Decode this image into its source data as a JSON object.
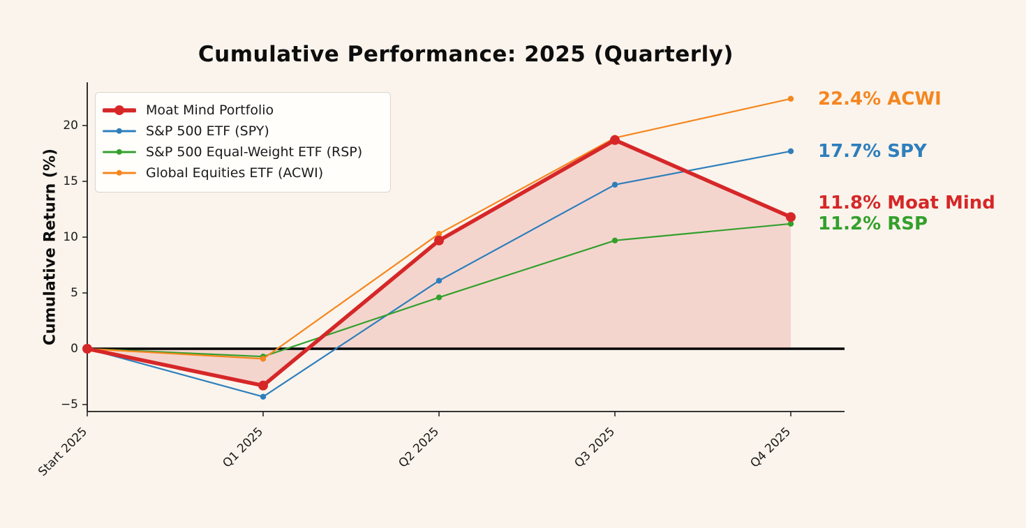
{
  "page": {
    "background_color": "#faf4ec"
  },
  "chart_data": {
    "type": "line",
    "title": "Cumulative Performance: 2025 (Quarterly)",
    "xlabel": "",
    "ylabel": "Cumulative Return (%)",
    "categories": [
      "Start 2025",
      "Q1 2025",
      "Q2 2025",
      "Q3 2025",
      "Q4 2025"
    ],
    "yticks": [
      -5,
      0,
      5,
      10,
      15,
      20
    ],
    "ylim": [
      -5.9,
      23.9
    ],
    "grid": false,
    "zero_line": {
      "show": true,
      "color": "#000000",
      "width": 3.5
    },
    "legend_position": "upper left",
    "series": [
      {
        "name": "Moat Mind Portfolio",
        "color": "#d62728",
        "line_width": 5.5,
        "marker_size": 7,
        "fill_to_zero": true,
        "fill_opacity": 0.15,
        "values": [
          0,
          -3.3,
          9.7,
          18.7,
          11.8
        ]
      },
      {
        "name": "S&P 500 ETF (SPY)",
        "color": "#2e7ebc",
        "line_width": 2.2,
        "marker_size": 4.2,
        "values": [
          0,
          -4.3,
          6.1,
          14.7,
          17.7
        ]
      },
      {
        "name": "S&P 500 Equal-Weight ETF (RSP)",
        "color": "#33a02c",
        "line_width": 2.2,
        "marker_size": 4.2,
        "values": [
          0,
          -0.7,
          4.6,
          9.7,
          11.2
        ]
      },
      {
        "name": "Global Equities ETF (ACWI)",
        "color": "#f5861f",
        "line_width": 2.2,
        "marker_size": 4.2,
        "values": [
          0,
          -0.9,
          10.3,
          18.9,
          22.4
        ]
      }
    ],
    "end_labels": [
      {
        "text": "22.4% ACWI",
        "color": "#f5861f",
        "y_value": 22.4
      },
      {
        "text": "17.7% SPY",
        "color": "#2e7ebc",
        "y_value": 17.7
      },
      {
        "text": "11.8% Moat Mind",
        "color": "#d62728",
        "y_value": 13.05
      },
      {
        "text": "11.2% RSP",
        "color": "#33a02c",
        "y_value": 11.2
      }
    ]
  }
}
